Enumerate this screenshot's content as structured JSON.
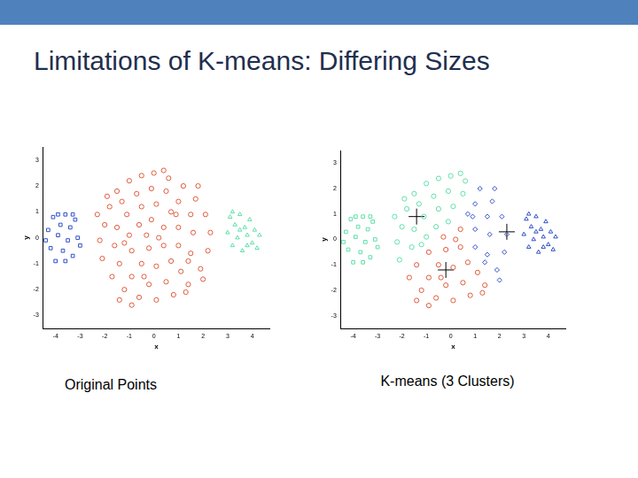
{
  "header": {
    "title": "Limitations of K-means: Differing Sizes"
  },
  "chart_data": [
    {
      "type": "scatter",
      "title": "Original Points",
      "x_label": "x",
      "y_label": "y",
      "xlim": [
        -4.5,
        4.7
      ],
      "ylim": [
        -3.5,
        3.5
      ],
      "xticks": [
        -4,
        -3,
        -2,
        -1,
        0,
        1,
        2,
        3,
        4
      ],
      "yticks": [
        -3,
        -2,
        -1,
        0,
        1,
        2,
        3
      ],
      "grid": false,
      "series": [
        {
          "color": "#3050c8",
          "marker": "square",
          "x": [
            -4.3,
            -4.2,
            -4.1,
            -4.0,
            -3.9,
            -3.8,
            -3.7,
            -3.6,
            -3.5,
            -3.4,
            -3.3,
            -3.2,
            -3.1,
            -3.0,
            -4.4,
            -3.6,
            -3.9,
            -3.3
          ],
          "y": [
            0.3,
            -0.4,
            0.8,
            -0.9,
            0.1,
            0.5,
            -0.5,
            0.9,
            -0.1,
            0.4,
            -0.7,
            0.7,
            0.0,
            -0.3,
            -0.1,
            -0.9,
            0.9,
            0.9
          ]
        },
        {
          "color": "#e05a3a",
          "marker": "circle",
          "x": [
            -2.0,
            -1.8,
            -1.5,
            -1.0,
            -0.5,
            0.0,
            0.6,
            1.2,
            1.7,
            2.1,
            2.3,
            2.2,
            1.9,
            1.4,
            0.8,
            0.1,
            -0.6,
            -1.2,
            -1.7,
            -2.1,
            -2.2,
            -1.3,
            -0.7,
            -0.1,
            0.5,
            1.0,
            1.5,
            1.6,
            1.5,
            1.1,
            0.5,
            -0.2,
            -0.9,
            -1.4,
            -1.6,
            -1.5,
            -1.1,
            -0.5,
            0.1,
            0.7,
            1.0,
            1.0,
            0.7,
            0.1,
            -0.5,
            -0.9,
            -1.0,
            -0.6,
            -0.1,
            0.4,
            0.4,
            -0.2,
            -0.3,
            0.2,
            -1.9,
            1.3,
            -1.4,
            0.4,
            -2.3,
            2.0,
            1.8,
            -0.9,
            0.9,
            -1.2,
            -0.4,
            1.4
          ],
          "y": [
            0.5,
            1.2,
            1.8,
            2.2,
            2.4,
            2.5,
            2.3,
            2.0,
            1.5,
            0.9,
            0.2,
            -0.5,
            -1.2,
            -1.8,
            -2.2,
            -2.4,
            -2.3,
            -2.0,
            -1.5,
            -0.8,
            -0.1,
            1.4,
            1.7,
            1.9,
            1.8,
            1.4,
            0.9,
            0.2,
            -0.6,
            -1.3,
            -1.7,
            -1.8,
            -1.5,
            -1.0,
            -0.3,
            0.4,
            0.9,
            1.2,
            1.3,
            1.0,
            0.4,
            -0.3,
            -0.9,
            -1.1,
            -1.0,
            -0.5,
            0.1,
            0.5,
            0.7,
            0.4,
            -0.3,
            -0.4,
            0.1,
            0.0,
            1.6,
            -2.1,
            -2.4,
            2.6,
            0.9,
            -1.6,
            2.0,
            -2.6,
            0.9,
            -0.2,
            -1.5,
            -0.9
          ]
        },
        {
          "color": "#5ee0a8",
          "marker": "triangle",
          "x": [
            3.0,
            3.1,
            3.2,
            3.3,
            3.4,
            3.5,
            3.6,
            3.7,
            3.8,
            3.9,
            4.0,
            4.1,
            4.2,
            4.3,
            3.5,
            3.8,
            3.2
          ],
          "y": [
            0.2,
            0.8,
            -0.3,
            0.5,
            0.0,
            0.9,
            -0.5,
            0.4,
            0.1,
            0.7,
            -0.2,
            0.3,
            -0.4,
            0.1,
            0.3,
            -0.3,
            1.0
          ]
        }
      ]
    },
    {
      "type": "scatter",
      "title": "K-means (3 Clusters)",
      "x_label": "x",
      "y_label": "y",
      "xlim": [
        -4.5,
        4.7
      ],
      "ylim": [
        -3.5,
        3.5
      ],
      "xticks": [
        -4,
        -3,
        -2,
        -1,
        0,
        1,
        2,
        3,
        4
      ],
      "yticks": [
        -3,
        -2,
        -1,
        0,
        1,
        2,
        3
      ],
      "grid": false,
      "series": [
        {
          "color": "#5ee0a8",
          "marker": "square",
          "x": [
            -4.3,
            -4.2,
            -4.1,
            -4.0,
            -3.9,
            -3.8,
            -3.7,
            -3.6,
            -3.5,
            -3.4,
            -3.3,
            -3.2,
            -3.1,
            -3.0,
            -4.4,
            -3.6,
            -3.9,
            -3.3
          ],
          "y": [
            0.3,
            -0.4,
            0.8,
            -0.9,
            0.1,
            0.5,
            -0.5,
            0.9,
            -0.1,
            0.4,
            -0.7,
            0.7,
            0.0,
            -0.3,
            -0.1,
            -0.9,
            0.9,
            0.9
          ]
        },
        {
          "color": "#5ee0a8",
          "marker": "circle",
          "x": [
            -2.0,
            -1.8,
            -1.5,
            -1.0,
            -0.5,
            0.0,
            0.6,
            -2.1,
            -2.2,
            -1.3,
            -0.7,
            -0.1,
            0.5,
            -1.6,
            -1.5,
            -1.1,
            -0.5,
            0.1,
            -1.0,
            -0.6,
            -0.1,
            -1.9,
            0.4,
            -2.3,
            -1.2
          ],
          "y": [
            0.5,
            1.2,
            1.8,
            2.2,
            2.4,
            2.5,
            2.3,
            -0.8,
            -0.1,
            1.4,
            1.7,
            1.9,
            1.8,
            -0.3,
            0.4,
            0.9,
            1.2,
            1.3,
            0.1,
            0.5,
            0.7,
            1.6,
            2.6,
            0.9,
            -0.2
          ]
        },
        {
          "color": "#e05a3a",
          "marker": "circle",
          "x": [
            1.4,
            0.8,
            0.1,
            -0.6,
            -1.2,
            -1.7,
            1.1,
            0.5,
            -0.2,
            -0.9,
            -1.4,
            0.7,
            0.1,
            -0.5,
            -0.9,
            0.4,
            0.4,
            -0.2,
            -0.3,
            0.2,
            1.3,
            -1.4,
            -0.9,
            -0.4
          ],
          "y": [
            -1.8,
            -2.2,
            -2.4,
            -2.3,
            -2.0,
            -1.5,
            -1.3,
            -1.7,
            -1.8,
            -1.5,
            -1.0,
            -0.9,
            -1.1,
            -1.0,
            -0.5,
            0.4,
            -0.3,
            -0.4,
            0.1,
            0.0,
            -2.1,
            -2.4,
            -2.6,
            -1.5
          ]
        },
        {
          "color": "#3050c8",
          "marker": "diamond",
          "x": [
            1.2,
            1.7,
            2.1,
            2.3,
            2.2,
            1.9,
            1.0,
            1.5,
            1.6,
            1.5,
            0.7,
            1.0,
            1.0,
            2.0,
            1.8,
            0.9,
            1.4
          ],
          "y": [
            2.0,
            1.5,
            0.9,
            0.2,
            -0.5,
            -1.2,
            1.4,
            0.9,
            0.2,
            -0.6,
            1.0,
            0.4,
            -0.3,
            -1.6,
            2.0,
            0.9,
            -0.9
          ]
        },
        {
          "color": "#3050c8",
          "marker": "triangle",
          "x": [
            3.0,
            3.1,
            3.2,
            3.3,
            3.4,
            3.5,
            3.6,
            3.7,
            3.8,
            3.9,
            4.0,
            4.1,
            4.2,
            4.3,
            3.5,
            3.8,
            3.2
          ],
          "y": [
            0.2,
            0.8,
            -0.3,
            0.5,
            0.0,
            0.9,
            -0.5,
            0.4,
            0.1,
            0.7,
            -0.2,
            0.3,
            -0.4,
            0.1,
            0.3,
            -0.3,
            1.0
          ]
        },
        {
          "color": "#000000",
          "marker": "plus",
          "x": [
            -1.4,
            2.3,
            -0.2
          ],
          "y": [
            0.9,
            0.3,
            -1.2
          ]
        }
      ]
    }
  ]
}
